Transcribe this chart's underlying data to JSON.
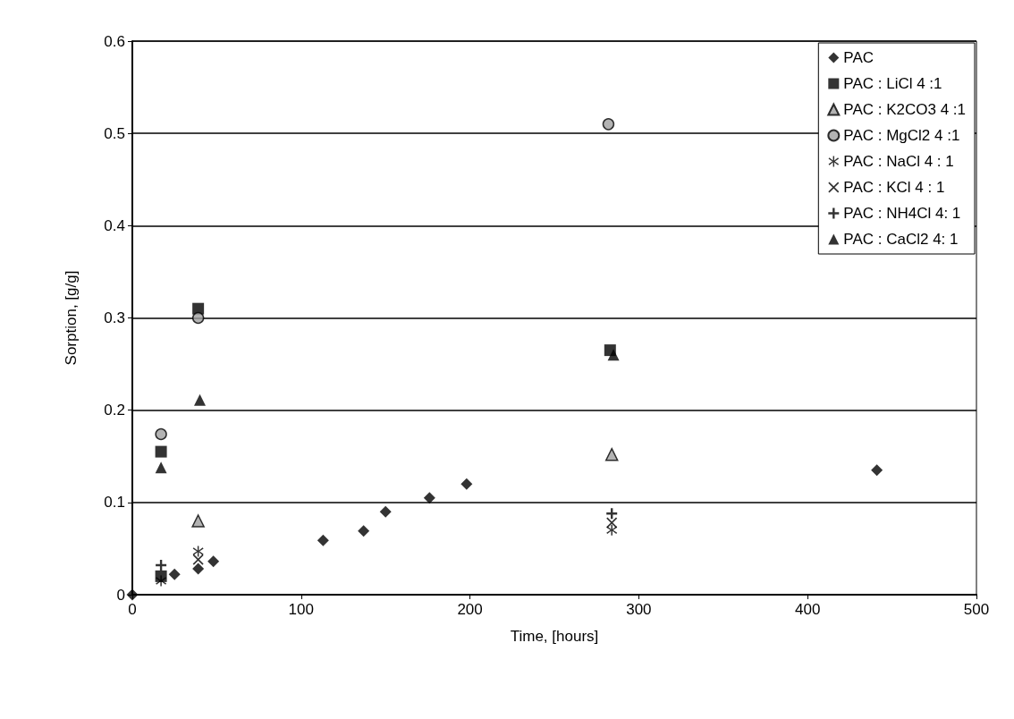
{
  "chart_data": {
    "type": "scatter",
    "xlabel": "Time, [hours]",
    "ylabel": "Sorption, [g/g]",
    "xlim": [
      0,
      500
    ],
    "xticks": [
      0,
      100,
      200,
      300,
      400,
      500
    ],
    "ylim": [
      0,
      0.6
    ],
    "yticks": [
      0,
      0.1,
      0.2,
      0.3,
      0.4,
      0.5,
      0.6
    ],
    "grid": "y",
    "legend": "top right",
    "series": [
      {
        "name": "PAC",
        "color": "#000000",
        "marker": "diamond",
        "x": [
          0,
          25,
          39,
          48,
          113,
          137,
          150,
          176,
          198,
          441
        ],
        "values": [
          0,
          0.022,
          0.028,
          0.036,
          0.059,
          0.069,
          0.09,
          0.105,
          0.12,
          0.135
        ]
      },
      {
        "name": "PAC : LiCl 4 :1",
        "color": "#000000",
        "marker": "square",
        "x": [
          17,
          17,
          39,
          283
        ],
        "values": [
          0.02,
          0.155,
          0.31,
          0.265
        ]
      },
      {
        "name": "PAC : K2CO3 4 :1",
        "color": "#a0a0a0",
        "marker": "triangle",
        "x": [
          39,
          284
        ],
        "values": [
          0.08,
          0.152
        ]
      },
      {
        "name": "PAC : MgCl2 4 :1",
        "color": "#a0a0a0",
        "marker": "circle",
        "x": [
          17,
          39,
          282
        ],
        "values": [
          0.174,
          0.3,
          0.51
        ]
      },
      {
        "name": "PAC : NaCl 4 : 1",
        "color": "#000000",
        "marker": "star",
        "x": [
          17,
          39,
          284
        ],
        "values": [
          0.015,
          0.047,
          0.07
        ]
      },
      {
        "name": "PAC : KCl 4 : 1",
        "color": "#000000",
        "marker": "x",
        "x": [
          39,
          284
        ],
        "values": [
          0.038,
          0.078
        ]
      },
      {
        "name": "PAC : NH4Cl 4: 1",
        "color": "#000000",
        "marker": "cross",
        "x": [
          17,
          284
        ],
        "values": [
          0.032,
          0.088
        ]
      },
      {
        "name": "PAC : CaCl2 4: 1",
        "color": "#000000",
        "marker": "triangle",
        "x": [
          17,
          40,
          285
        ],
        "values": [
          0.138,
          0.211,
          0.26
        ]
      }
    ]
  }
}
